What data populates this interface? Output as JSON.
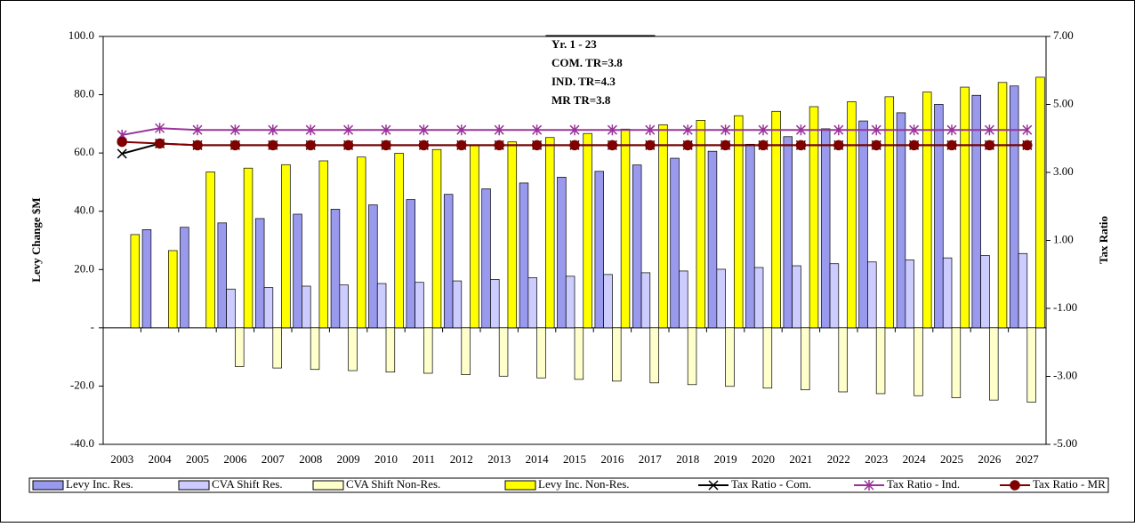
{
  "chart_data": {
    "type": "bar",
    "annotations": [
      "Yr. 1 - 23",
      "COM. TR=3.8",
      "IND. TR=4.3",
      "MR TR=3.8"
    ],
    "ylabel": "Levy Change $M",
    "y2label": "Tax Ratio",
    "categories": [
      "2003",
      "2004",
      "2005",
      "2006",
      "2007",
      "2008",
      "2009",
      "2010",
      "2011",
      "2012",
      "2013",
      "2014",
      "2015",
      "2016",
      "2017",
      "2018",
      "2019",
      "2020",
      "2021",
      "2022",
      "2023",
      "2024",
      "2025",
      "2026",
      "2027"
    ],
    "ylim": [
      -40,
      100
    ],
    "yticks": [
      {
        "value": 100,
        "label": "100.0"
      },
      {
        "value": 80,
        "label": "80.0"
      },
      {
        "value": 60,
        "label": "60.0"
      },
      {
        "value": 40,
        "label": "40.0"
      },
      {
        "value": 20,
        "label": "20.0"
      },
      {
        "value": 0,
        "label": "-"
      },
      {
        "value": -20,
        "label": "-20.0"
      },
      {
        "value": -40,
        "label": "-40.0"
      }
    ],
    "y2lim": [
      -5,
      7
    ],
    "y2ticks": [
      {
        "value": 7,
        "label": "7.00"
      },
      {
        "value": 5,
        "label": "5.00"
      },
      {
        "value": 3,
        "label": "3.00"
      },
      {
        "value": 1,
        "label": "1.00"
      },
      {
        "value": -1,
        "label": "-1.00"
      },
      {
        "value": -3,
        "label": "-3.00"
      },
      {
        "value": -5,
        "label": "-5.00"
      }
    ],
    "series": [
      {
        "name": "Levy Inc. Res.",
        "type": "bar",
        "color": "#9999ee",
        "values": [
          null,
          33.7,
          34.5,
          36,
          37.5,
          39,
          40.7,
          42.2,
          44,
          45.8,
          47.7,
          49.7,
          51.7,
          53.7,
          55.9,
          58.2,
          60.6,
          63,
          65.6,
          68.3,
          71,
          73.8,
          76.7,
          79.8,
          83
        ]
      },
      {
        "name": "CVA Shift Res.",
        "type": "bar",
        "color": "#ccccff",
        "values": [
          null,
          null,
          null,
          13.3,
          13.8,
          14.3,
          14.7,
          15.2,
          15.6,
          16.1,
          16.6,
          17.2,
          17.7,
          18.3,
          18.9,
          19.5,
          20.1,
          20.7,
          21.3,
          22,
          22.6,
          23.3,
          24,
          24.8,
          25.5
        ]
      },
      {
        "name": "CVA Shift Non-Res.",
        "type": "bar",
        "color": "#ffffcc",
        "values": [
          null,
          null,
          null,
          -13.3,
          -13.8,
          -14.3,
          -14.7,
          -15.2,
          -15.6,
          -16.1,
          -16.6,
          -17.2,
          -17.7,
          -18.3,
          -18.9,
          -19.5,
          -20.1,
          -20.7,
          -21.3,
          -22,
          -22.6,
          -23.3,
          -24,
          -24.8,
          -25.5
        ]
      },
      {
        "name": "Levy Inc. Non-Res.",
        "type": "bar",
        "color": "#ffff00",
        "values": [
          32,
          26.5,
          53.5,
          54.8,
          56,
          57.3,
          58.6,
          59.9,
          61.2,
          62.5,
          63.8,
          65.3,
          66.7,
          68.2,
          69.7,
          71.2,
          72.8,
          74.3,
          75.9,
          77.6,
          79.3,
          80.9,
          82.6,
          84.2,
          86
        ]
      },
      {
        "name": "Tax Ratio - Com.",
        "type": "line",
        "axis": "y2",
        "marker": "x",
        "color": "#000000",
        "values": [
          3.55,
          3.85,
          3.8,
          3.8,
          3.8,
          3.8,
          3.8,
          3.8,
          3.8,
          3.8,
          3.8,
          3.8,
          3.8,
          3.8,
          3.8,
          3.8,
          3.8,
          3.8,
          3.8,
          3.8,
          3.8,
          3.8,
          3.8,
          3.8,
          3.8
        ]
      },
      {
        "name": "Tax Ratio - Ind.",
        "type": "line",
        "axis": "y2",
        "marker": "star",
        "color": "#993399",
        "values": [
          4.1,
          4.3,
          4.25,
          4.25,
          4.25,
          4.25,
          4.25,
          4.25,
          4.25,
          4.25,
          4.25,
          4.25,
          4.25,
          4.25,
          4.25,
          4.25,
          4.25,
          4.25,
          4.25,
          4.25,
          4.25,
          4.25,
          4.25,
          4.25,
          4.25
        ]
      },
      {
        "name": "Tax Ratio - MR",
        "type": "line",
        "axis": "y2",
        "marker": "circle",
        "color": "#800000",
        "values": [
          3.9,
          3.85,
          3.8,
          3.8,
          3.8,
          3.8,
          3.8,
          3.8,
          3.8,
          3.8,
          3.8,
          3.8,
          3.8,
          3.8,
          3.8,
          3.8,
          3.8,
          3.8,
          3.8,
          3.8,
          3.8,
          3.8,
          3.8,
          3.8,
          3.8
        ]
      }
    ]
  }
}
